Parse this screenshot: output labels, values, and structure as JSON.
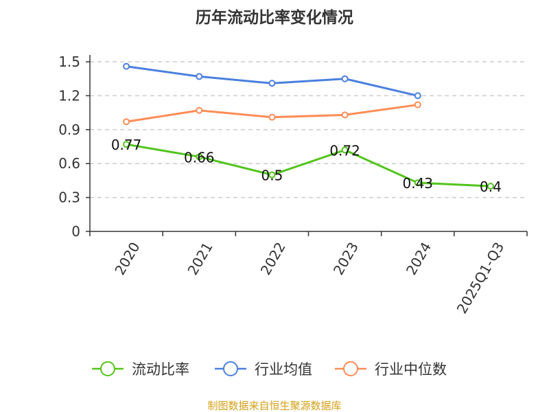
{
  "chart_data": {
    "type": "line",
    "title": "历年流动比率变化情况",
    "categories": [
      "2020",
      "2021",
      "2022",
      "2023",
      "2024",
      "2025Q1-Q3"
    ],
    "ylim": [
      0,
      1.5
    ],
    "yticks": [
      "0",
      "0.3",
      "0.6",
      "0.9",
      "1.2",
      "1.5"
    ],
    "grid": true,
    "legend_position": "bottom",
    "series": [
      {
        "name": "流动比率",
        "color": "#52c41a",
        "values": [
          0.77,
          0.66,
          0.5,
          0.72,
          0.43,
          0.4
        ],
        "labels": [
          "0.77",
          "0.66",
          "0.5",
          "0.72",
          "0.43",
          "0.4"
        ]
      },
      {
        "name": "行业均值",
        "color": "#4a7fe0",
        "values": [
          1.46,
          1.37,
          1.31,
          1.35,
          1.2,
          null
        ]
      },
      {
        "name": "行业中位数",
        "color": "#ff8c55",
        "values": [
          0.97,
          1.07,
          1.01,
          1.03,
          1.12,
          null
        ]
      }
    ]
  },
  "footer": {
    "source": "制图数据来自恒生聚源数据库",
    "color": "#d4a017"
  }
}
